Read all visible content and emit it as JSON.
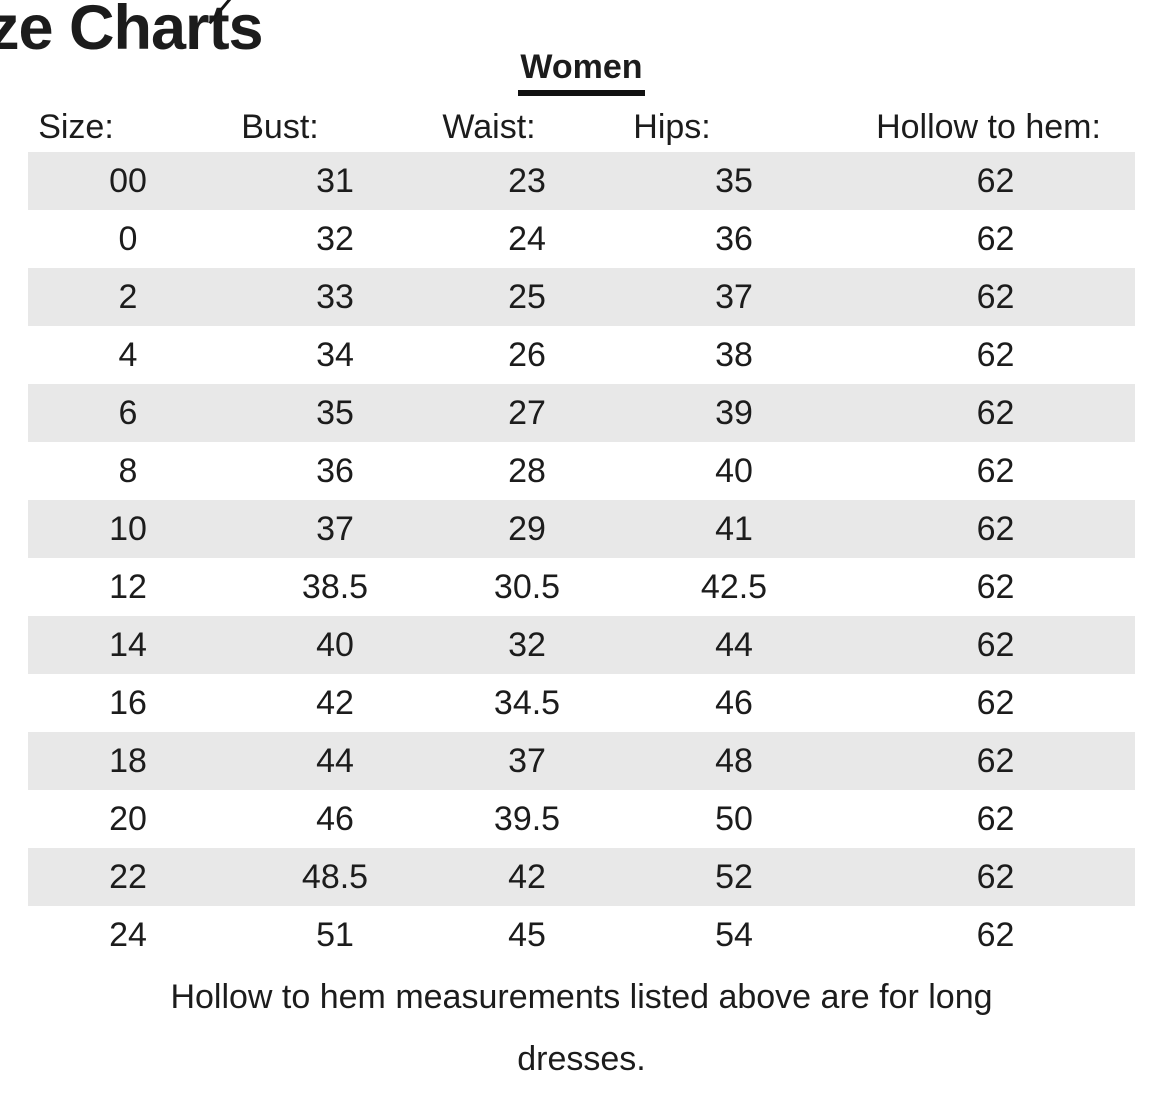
{
  "header": {
    "title_visible": "ze Charts",
    "section_title": "Women"
  },
  "table": {
    "columns": [
      "Size:",
      "Bust:",
      "Waist:",
      "Hips:",
      "Hollow to hem:"
    ],
    "rows": [
      [
        "00",
        "31",
        "23",
        "35",
        "62"
      ],
      [
        "0",
        "32",
        "24",
        "36",
        "62"
      ],
      [
        "2",
        "33",
        "25",
        "37",
        "62"
      ],
      [
        "4",
        "34",
        "26",
        "38",
        "62"
      ],
      [
        "6",
        "35",
        "27",
        "39",
        "62"
      ],
      [
        "8",
        "36",
        "28",
        "40",
        "62"
      ],
      [
        "10",
        "37",
        "29",
        "41",
        "62"
      ],
      [
        "12",
        "38.5",
        "30.5",
        "42.5",
        "62"
      ],
      [
        "14",
        "40",
        "32",
        "44",
        "62"
      ],
      [
        "16",
        "42",
        "34.5",
        "46",
        "62"
      ],
      [
        "18",
        "44",
        "37",
        "48",
        "62"
      ],
      [
        "20",
        "46",
        "39.5",
        "50",
        "62"
      ],
      [
        "22",
        "48.5",
        "42",
        "52",
        "62"
      ],
      [
        "24",
        "51",
        "45",
        "54",
        "62"
      ]
    ]
  },
  "footer": {
    "line1": "Hollow to hem measurements listed above are for long",
    "line2": "dresses."
  },
  "colors": {
    "background": "#ffffff",
    "stripe": "#e8e8e8",
    "text": "#1c1c1c"
  }
}
